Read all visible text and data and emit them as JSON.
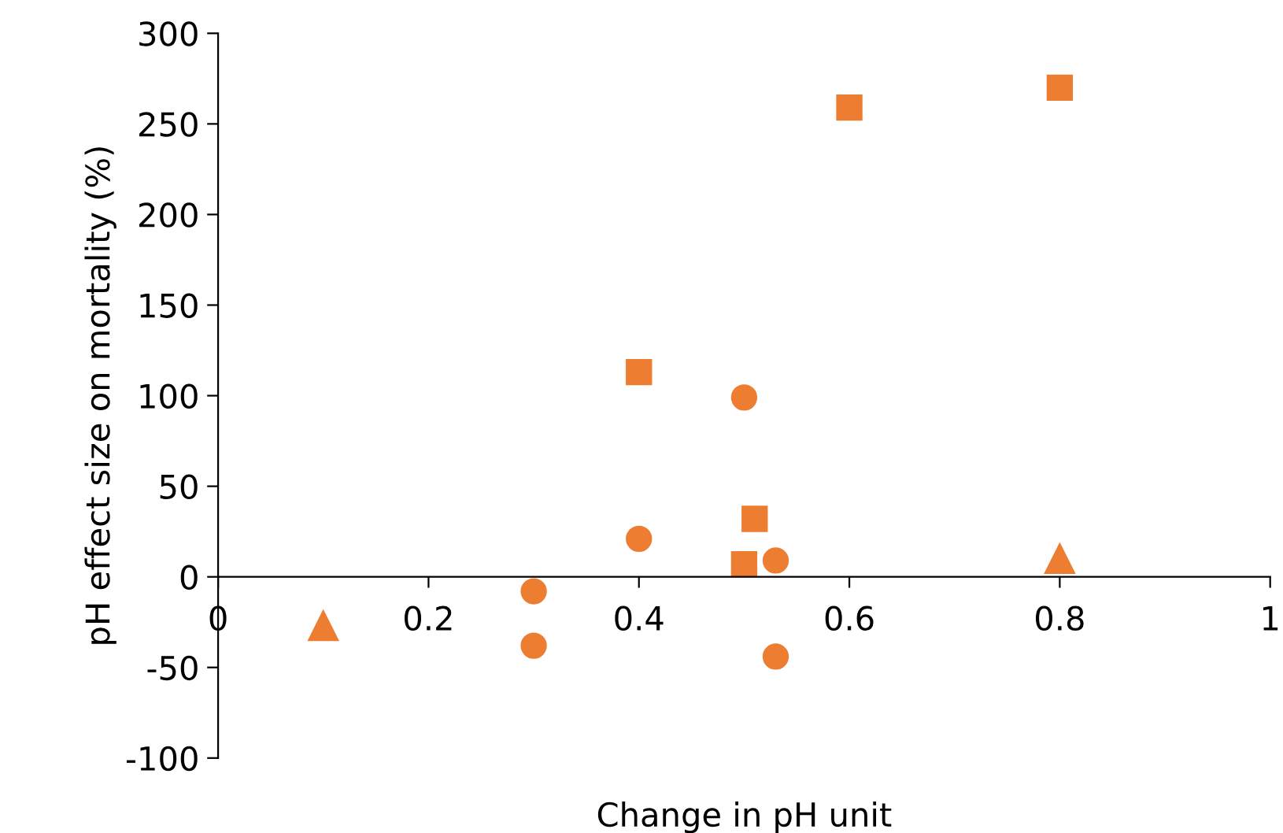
{
  "chart_data": {
    "type": "scatter",
    "xlabel": "Change in pH unit",
    "ylabel": "pH effect size on mortality (%)",
    "xlim": [
      0,
      1
    ],
    "ylim": [
      -100,
      300
    ],
    "xticks": [
      0,
      0.2,
      0.4,
      0.6,
      0.8,
      1
    ],
    "yticks": [
      -100,
      -50,
      0,
      50,
      100,
      150,
      200,
      250,
      300
    ],
    "grid": false,
    "legend": false,
    "series": [
      {
        "color": "#ed7d31",
        "marker": "square",
        "x": [
          0.6,
          0.8,
          0.51,
          0.5
        ],
        "values": [
          259,
          270,
          32,
          7
        ]
      },
      {
        "color": "#ed7d31",
        "marker": "square",
        "x": [
          0.4
        ],
        "values": [
          113
        ]
      },
      {
        "color": "#ed7d31",
        "marker": "circle",
        "x": [
          0.5,
          0.4,
          0.3,
          0.3,
          0.53,
          0.53
        ],
        "values": [
          99,
          21,
          -8,
          -38,
          9,
          -44
        ]
      },
      {
        "color": "#ed7d31",
        "marker": "triangle",
        "x": [
          0.1,
          0.8
        ],
        "values": [
          -27,
          10
        ]
      }
    ]
  }
}
